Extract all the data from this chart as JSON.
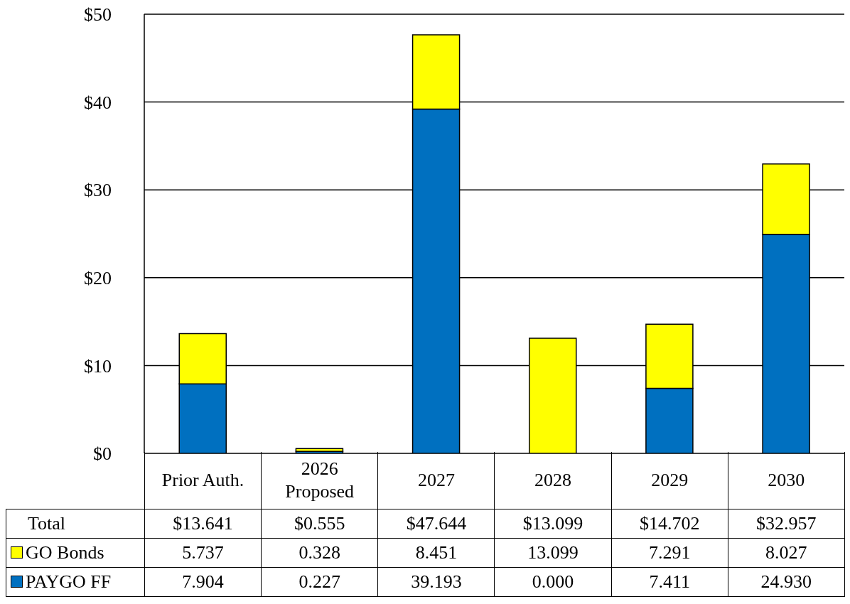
{
  "chart_data": {
    "type": "bar",
    "stacked": true,
    "categories": [
      "Prior Auth.",
      "2026\nProposed",
      "2027",
      "2028",
      "2029",
      "2030"
    ],
    "series": [
      {
        "name": "PAYGO FF",
        "color": "#0070c0",
        "values": [
          7.904,
          0.227,
          39.193,
          0.0,
          7.411,
          24.93
        ],
        "value_labels": [
          "7.904",
          "0.227",
          "39.193",
          "0.000",
          "7.411",
          "24.930"
        ]
      },
      {
        "name": "GO Bonds",
        "color": "#ffff00",
        "values": [
          5.737,
          0.328,
          8.451,
          13.099,
          7.291,
          8.027
        ],
        "value_labels": [
          "5.737",
          "0.328",
          "8.451",
          "13.099",
          "7.291",
          "8.027"
        ]
      }
    ],
    "annotations": [
      "Total",
      "$13.641",
      "$0.555",
      "$47.644",
      "$13.099",
      "$14.702",
      "$32.957"
    ],
    "ylim": [
      0,
      50
    ],
    "yticks": [
      {
        "value": 0,
        "label": "$0"
      },
      {
        "value": 10,
        "label": "$10"
      },
      {
        "value": 20,
        "label": "$20"
      },
      {
        "value": 30,
        "label": "$30"
      },
      {
        "value": 40,
        "label": "$40"
      },
      {
        "value": 50,
        "label": "$50"
      }
    ],
    "grid": "y",
    "legend": "bottom"
  }
}
